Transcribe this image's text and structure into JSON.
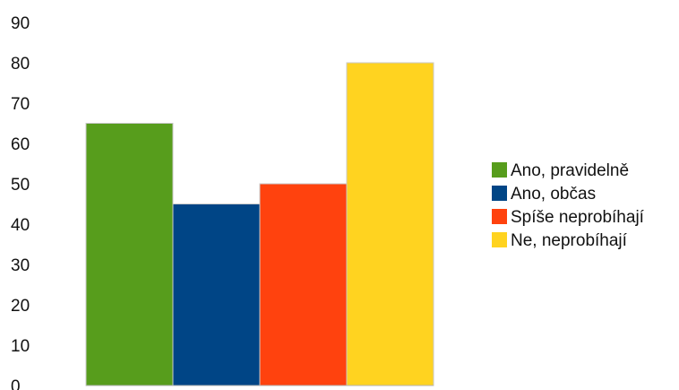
{
  "chart_data": {
    "type": "bar",
    "title": "",
    "xlabel": "",
    "ylabel": "",
    "ylim": [
      0,
      90
    ],
    "yticks": [
      0,
      10,
      20,
      30,
      40,
      50,
      60,
      70,
      80,
      90
    ],
    "grid": false,
    "legend_position": "right",
    "series": [
      {
        "name": "Ano, pravidelně",
        "value": 65,
        "color": "#579d1c"
      },
      {
        "name": "Ano, občas",
        "value": 45,
        "color": "#004586"
      },
      {
        "name": "Spíše neprobíhají",
        "value": 50,
        "color": "#ff420e"
      },
      {
        "name": "Ne, neprobíhají",
        "value": 80,
        "color": "#ffd320"
      }
    ]
  }
}
